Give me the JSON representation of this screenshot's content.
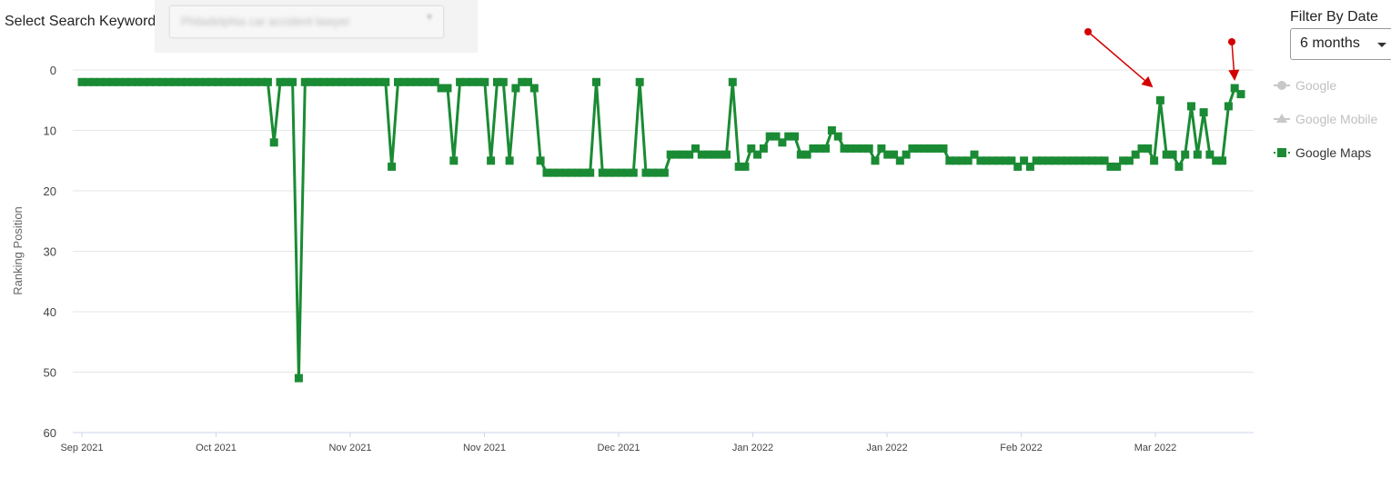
{
  "keyword": {
    "label": "Select Search Keyword",
    "value": "Philadelphia car accident lawyer"
  },
  "filter": {
    "label": "Filter By Date",
    "value": "6 months"
  },
  "colors": {
    "series": "#1a8b34",
    "inactive": "#c8c8c8",
    "arrow": "#d40000"
  },
  "chart_data": {
    "type": "line",
    "ylabel": "Ranking Position",
    "ylim": [
      60,
      0
    ],
    "yticks": [
      0,
      10,
      20,
      30,
      40,
      50,
      60
    ],
    "xticks": [
      "Sep 2021",
      "Oct 2021",
      "Nov 2021",
      "Nov 2021",
      "Dec 2021",
      "Jan 2022",
      "Jan 2022",
      "Feb 2022",
      "Mar 2022"
    ],
    "grid": true,
    "legend_position": "right",
    "series": [
      {
        "name": "Google",
        "active": false,
        "values": []
      },
      {
        "name": "Google Mobile",
        "active": false,
        "values": []
      },
      {
        "name": "Google Maps",
        "active": true,
        "values": [
          2,
          2,
          2,
          2,
          2,
          2,
          2,
          2,
          2,
          2,
          2,
          2,
          2,
          2,
          2,
          2,
          2,
          2,
          2,
          2,
          2,
          2,
          2,
          2,
          2,
          2,
          2,
          2,
          2,
          2,
          2,
          12,
          2,
          2,
          2,
          51,
          2,
          2,
          2,
          2,
          2,
          2,
          2,
          2,
          2,
          2,
          2,
          2,
          2,
          2,
          16,
          2,
          2,
          2,
          2,
          2,
          2,
          2,
          3,
          3,
          15,
          2,
          2,
          2,
          2,
          2,
          15,
          2,
          2,
          15,
          3,
          2,
          2,
          3,
          15,
          17,
          17,
          17,
          17,
          17,
          17,
          17,
          17,
          2,
          17,
          17,
          17,
          17,
          17,
          17,
          2,
          17,
          17,
          17,
          17,
          14,
          14,
          14,
          14,
          13,
          14,
          14,
          14,
          14,
          14,
          2,
          16,
          16,
          13,
          14,
          13,
          11,
          11,
          12,
          11,
          11,
          14,
          14,
          13,
          13,
          13,
          10,
          11,
          13,
          13,
          13,
          13,
          13,
          15,
          13,
          14,
          14,
          15,
          14,
          13,
          13,
          13,
          13,
          13,
          13,
          15,
          15,
          15,
          15,
          14,
          15,
          15,
          15,
          15,
          15,
          15,
          16,
          15,
          16,
          15,
          15,
          15,
          15,
          15,
          15,
          15,
          15,
          15,
          15,
          15,
          15,
          16,
          16,
          15,
          15,
          14,
          13,
          13,
          15,
          5,
          14,
          14,
          16,
          14,
          6,
          14,
          7,
          14,
          15,
          15,
          6,
          3,
          4
        ]
      }
    ],
    "annotations": [
      {
        "type": "arrow",
        "points_to": "Google Maps position 5"
      },
      {
        "type": "arrow",
        "points_to": "Google Maps position 3"
      }
    ]
  }
}
